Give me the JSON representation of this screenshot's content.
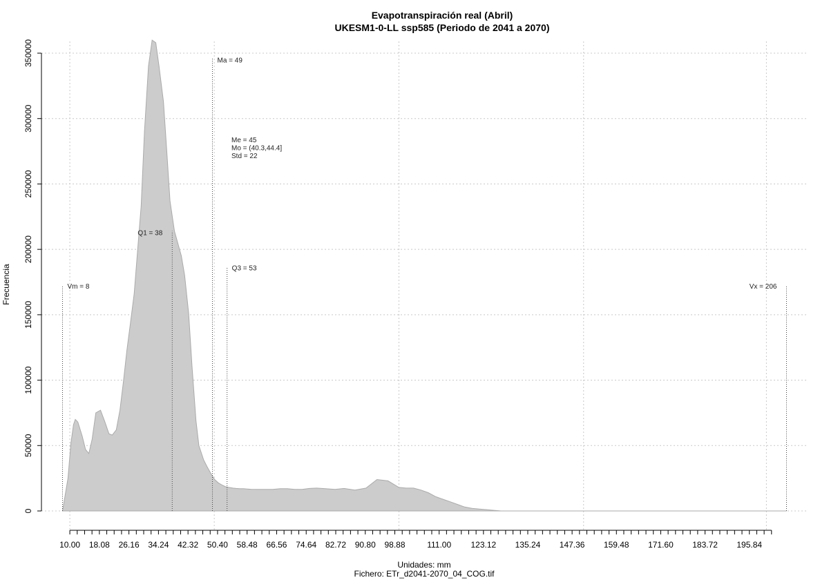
{
  "chart_data": {
    "type": "area",
    "title": "Evapotranspiración real (Abril)",
    "subtitle": "UKESM1-0-LL ssp585 (Periodo de 2041 a 2070)",
    "xlabel": "Unidades: mm",
    "ylabel": "Frecuencia",
    "footer": "Fichero: ETr_d2041-2070_04_COG.tif",
    "xlim": [
      7,
      214
    ],
    "ylim": [
      0,
      360000
    ],
    "x_ticks": [
      10,
      12.02,
      14.04,
      16.06,
      18.08,
      20.1,
      22.12,
      24.14,
      26.16,
      28.18,
      30.2,
      32.22,
      34.24,
      36.26,
      38.28,
      40.3,
      42.32,
      44.34,
      46.36,
      48.38,
      50.4,
      52.42,
      54.44,
      56.46,
      58.48,
      60.5,
      62.52,
      64.54,
      66.56,
      68.58,
      70.6,
      72.62,
      74.64,
      76.66,
      78.68,
      80.7,
      82.72,
      84.74,
      86.76,
      88.78,
      90.8,
      92.82,
      94.84,
      96.86,
      98.88,
      100.9,
      102.92,
      104.94,
      106.96,
      108.98,
      111.0,
      113.02,
      115.04,
      117.06,
      119.08,
      121.1,
      123.12,
      125.14,
      127.16,
      129.18,
      131.2,
      133.22,
      135.24,
      137.26,
      139.28,
      141.3,
      143.32,
      145.34,
      147.36,
      149.38,
      151.4,
      153.42,
      155.44,
      157.46,
      159.48,
      161.5,
      163.52,
      165.54,
      167.56,
      169.58,
      171.6,
      173.62,
      175.64,
      177.66,
      179.68,
      181.7,
      183.72,
      185.74,
      187.76,
      189.78,
      191.8,
      193.82,
      195.84,
      197.86,
      199.88,
      201.9
    ],
    "x_tick_labels": [
      "10.00",
      "18.08",
      "26.16",
      "34.24",
      "42.32",
      "50.40",
      "58.48",
      "66.56",
      "74.64",
      "82.72",
      "90.80",
      "98.88",
      "111.00",
      "123.12",
      "135.24",
      "147.36",
      "159.48",
      "171.60",
      "183.72",
      "195.84"
    ],
    "x_tick_label_values": [
      10,
      18.08,
      26.16,
      34.24,
      42.32,
      50.4,
      58.48,
      66.56,
      74.64,
      82.72,
      90.8,
      98.88,
      111,
      123.12,
      135.24,
      147.36,
      159.48,
      171.6,
      183.72,
      195.84
    ],
    "y_ticks": [
      0,
      50000,
      100000,
      150000,
      200000,
      250000,
      300000,
      350000
    ],
    "y_tick_labels": [
      "0",
      "50000",
      "100000",
      "150000",
      "200000",
      "250000",
      "300000",
      "350000"
    ],
    "grid": true,
    "series": [
      {
        "x": [
          8,
          9.5,
          10.3,
          11,
          11.5,
          12.2,
          13.4,
          14.3,
          15.2,
          16.1,
          17.1,
          18.4,
          19.6,
          20.7,
          21.6,
          22.7,
          23.7,
          24.7,
          25.6,
          26.6,
          27.6,
          28.5,
          29.5,
          30.4,
          31.5,
          32.5,
          33.5,
          34.4,
          35.6,
          36.5,
          37.4,
          38.6,
          39.6,
          40.5,
          41.4,
          42.5,
          43.4,
          44.5,
          45.3,
          46.6,
          47.5,
          48.5,
          49.6,
          50.6,
          51.5,
          52.6,
          53.5,
          54.6,
          55.5,
          56.5,
          57.5,
          58.6,
          59.6,
          61.5,
          63.5,
          65.5,
          67.5,
          69.5,
          71.5,
          73.5,
          75.5,
          77.5,
          80,
          82.5,
          85,
          88,
          91,
          94,
          97,
          100,
          102,
          104,
          106,
          108,
          110,
          112,
          114,
          116,
          118,
          120,
          122,
          124,
          126,
          128,
          130,
          132,
          134,
          136,
          138,
          140,
          143,
          146,
          150,
          155,
          170,
          190,
          206
        ],
        "y": [
          0,
          25000,
          52000,
          66000,
          70000,
          68000,
          57000,
          47000,
          44000,
          55000,
          75000,
          77000,
          68000,
          59000,
          58000,
          62000,
          77000,
          100000,
          123000,
          144000,
          166000,
          198000,
          233000,
          290000,
          340000,
          360000,
          358000,
          340000,
          313000,
          276000,
          237000,
          214000,
          204000,
          195000,
          180000,
          151000,
          111000,
          69000,
          50000,
          39000,
          34000,
          29000,
          24000,
          21500,
          20000,
          18500,
          18000,
          17500,
          17200,
          17000,
          17000,
          16800,
          16600,
          16500,
          16500,
          16500,
          17000,
          17000,
          16500,
          16500,
          17200,
          17500,
          17000,
          16500,
          17200,
          16000,
          17500,
          24000,
          23000,
          18000,
          17500,
          17500,
          16000,
          14000,
          11000,
          9000,
          7000,
          5000,
          3000,
          2000,
          1500,
          1000,
          500,
          0,
          0,
          0,
          0,
          0,
          0,
          0,
          0,
          0,
          0,
          0,
          0,
          0,
          0
        ]
      }
    ],
    "annotations": [
      {
        "text": "Vm = 8",
        "x": 8,
        "line_top": 172000,
        "text_y": 172000,
        "align": "start"
      },
      {
        "text": "Q1 = 38",
        "x": 38,
        "line_top": 214000,
        "text_y": 213000,
        "align": "end"
      },
      {
        "text": "Ma = 49",
        "x": 49,
        "line_top": 346000,
        "text_y": 345000,
        "align": "start"
      },
      {
        "text": "Q3 = 53",
        "x": 53,
        "line_top": 186000,
        "text_y": 186000,
        "align": "start"
      },
      {
        "text": "Vx = 206",
        "x": 206,
        "line_top": 172000,
        "text_y": 172000,
        "align": "end"
      }
    ],
    "stats_box": [
      "Me = 45",
      "Mo = (40.3,44.4]",
      "Std = 22"
    ],
    "fill_color": "#cccccc",
    "outline_color": "#aaaaaa"
  }
}
